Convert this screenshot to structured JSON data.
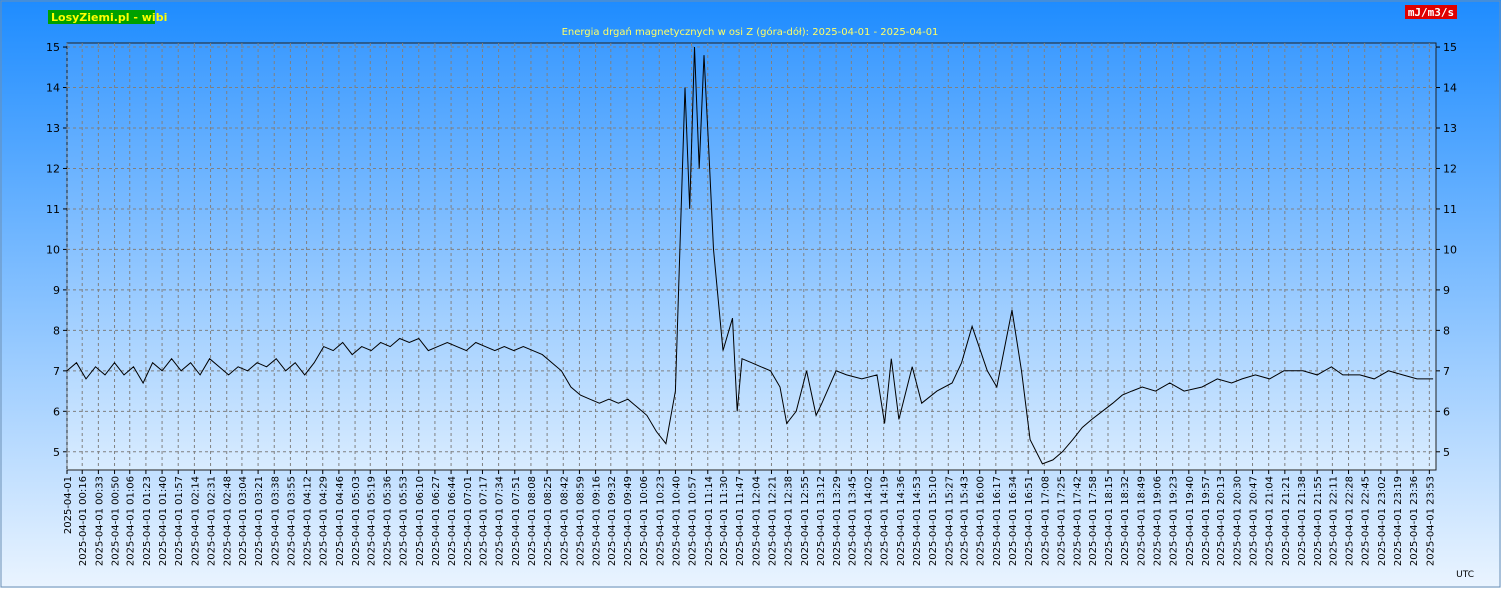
{
  "chart_data": {
    "type": "line",
    "title": "Energia drgań magnetycznych w osi Z (góra-dół): 2025-04-01 - 2025-04-01",
    "badge": "LosyZiemi.pl - wibi",
    "unit": "mJ/m3/s",
    "timezone": "UTC",
    "grid": true,
    "xlim": [
      0,
      1440
    ],
    "ylim": [
      4.55,
      15.1
    ],
    "yticks": [
      5,
      6,
      7,
      8,
      9,
      10,
      11,
      12,
      13,
      14,
      15
    ],
    "xticks": [
      {
        "value": 0,
        "label": "2025-04-01"
      },
      {
        "value": 16,
        "label": "2025-04-01 00:16"
      },
      {
        "value": 33,
        "label": "2025-04-01 00:33"
      },
      {
        "value": 50,
        "label": "2025-04-01 00:50"
      },
      {
        "value": 66,
        "label": "2025-04-01 01:06"
      },
      {
        "value": 83,
        "label": "2025-04-01 01:23"
      },
      {
        "value": 100,
        "label": "2025-04-01 01:40"
      },
      {
        "value": 117,
        "label": "2025-04-01 01:57"
      },
      {
        "value": 134,
        "label": "2025-04-01 02:14"
      },
      {
        "value": 151,
        "label": "2025-04-01 02:31"
      },
      {
        "value": 168,
        "label": "2025-04-01 02:48"
      },
      {
        "value": 184,
        "label": "2025-04-01 03:04"
      },
      {
        "value": 201,
        "label": "2025-04-01 03:21"
      },
      {
        "value": 218,
        "label": "2025-04-01 03:38"
      },
      {
        "value": 235,
        "label": "2025-04-01 03:55"
      },
      {
        "value": 252,
        "label": "2025-04-01 04:12"
      },
      {
        "value": 269,
        "label": "2025-04-01 04:29"
      },
      {
        "value": 286,
        "label": "2025-04-01 04:46"
      },
      {
        "value": 303,
        "label": "2025-04-01 05:03"
      },
      {
        "value": 319,
        "label": "2025-04-01 05:19"
      },
      {
        "value": 336,
        "label": "2025-04-01 05:36"
      },
      {
        "value": 353,
        "label": "2025-04-01 05:53"
      },
      {
        "value": 370,
        "label": "2025-04-01 06:10"
      },
      {
        "value": 387,
        "label": "2025-04-01 06:27"
      },
      {
        "value": 404,
        "label": "2025-04-01 06:44"
      },
      {
        "value": 421,
        "label": "2025-04-01 07:01"
      },
      {
        "value": 437,
        "label": "2025-04-01 07:17"
      },
      {
        "value": 454,
        "label": "2025-04-01 07:34"
      },
      {
        "value": 471,
        "label": "2025-04-01 07:51"
      },
      {
        "value": 488,
        "label": "2025-04-01 08:08"
      },
      {
        "value": 505,
        "label": "2025-04-01 08:25"
      },
      {
        "value": 522,
        "label": "2025-04-01 08:42"
      },
      {
        "value": 539,
        "label": "2025-04-01 08:59"
      },
      {
        "value": 556,
        "label": "2025-04-01 09:16"
      },
      {
        "value": 572,
        "label": "2025-04-01 09:32"
      },
      {
        "value": 589,
        "label": "2025-04-01 09:49"
      },
      {
        "value": 606,
        "label": "2025-04-01 10:06"
      },
      {
        "value": 623,
        "label": "2025-04-01 10:23"
      },
      {
        "value": 640,
        "label": "2025-04-01 10:40"
      },
      {
        "value": 657,
        "label": "2025-04-01 10:57"
      },
      {
        "value": 674,
        "label": "2025-04-01 11:14"
      },
      {
        "value": 690,
        "label": "2025-04-01 11:30"
      },
      {
        "value": 707,
        "label": "2025-04-01 11:47"
      },
      {
        "value": 724,
        "label": "2025-04-01 12:04"
      },
      {
        "value": 741,
        "label": "2025-04-01 12:21"
      },
      {
        "value": 758,
        "label": "2025-04-01 12:38"
      },
      {
        "value": 775,
        "label": "2025-04-01 12:55"
      },
      {
        "value": 792,
        "label": "2025-04-01 13:12"
      },
      {
        "value": 809,
        "label": "2025-04-01 13:29"
      },
      {
        "value": 825,
        "label": "2025-04-01 13:45"
      },
      {
        "value": 842,
        "label": "2025-04-01 14:02"
      },
      {
        "value": 859,
        "label": "2025-04-01 14:19"
      },
      {
        "value": 876,
        "label": "2025-04-01 14:36"
      },
      {
        "value": 893,
        "label": "2025-04-01 14:53"
      },
      {
        "value": 910,
        "label": "2025-04-01 15:10"
      },
      {
        "value": 927,
        "label": "2025-04-01 15:27"
      },
      {
        "value": 943,
        "label": "2025-04-01 15:43"
      },
      {
        "value": 960,
        "label": "2025-04-01 16:00"
      },
      {
        "value": 977,
        "label": "2025-04-01 16:17"
      },
      {
        "value": 994,
        "label": "2025-04-01 16:34"
      },
      {
        "value": 1011,
        "label": "2025-04-01 16:51"
      },
      {
        "value": 1028,
        "label": "2025-04-01 17:08"
      },
      {
        "value": 1045,
        "label": "2025-04-01 17:25"
      },
      {
        "value": 1062,
        "label": "2025-04-01 17:42"
      },
      {
        "value": 1078,
        "label": "2025-04-01 17:58"
      },
      {
        "value": 1095,
        "label": "2025-04-01 18:15"
      },
      {
        "value": 1112,
        "label": "2025-04-01 18:32"
      },
      {
        "value": 1129,
        "label": "2025-04-01 18:49"
      },
      {
        "value": 1146,
        "label": "2025-04-01 19:06"
      },
      {
        "value": 1163,
        "label": "2025-04-01 19:23"
      },
      {
        "value": 1180,
        "label": "2025-04-01 19:40"
      },
      {
        "value": 1197,
        "label": "2025-04-01 19:57"
      },
      {
        "value": 1213,
        "label": "2025-04-01 20:13"
      },
      {
        "value": 1230,
        "label": "2025-04-01 20:30"
      },
      {
        "value": 1247,
        "label": "2025-04-01 20:47"
      },
      {
        "value": 1264,
        "label": "2025-04-01 21:04"
      },
      {
        "value": 1281,
        "label": "2025-04-01 21:21"
      },
      {
        "value": 1298,
        "label": "2025-04-01 21:38"
      },
      {
        "value": 1315,
        "label": "2025-04-01 21:55"
      },
      {
        "value": 1331,
        "label": "2025-04-01 22:11"
      },
      {
        "value": 1348,
        "label": "2025-04-01 22:28"
      },
      {
        "value": 1365,
        "label": "2025-04-01 22:45"
      },
      {
        "value": 1382,
        "label": "2025-04-01 23:02"
      },
      {
        "value": 1399,
        "label": "2025-04-01 23:19"
      },
      {
        "value": 1416,
        "label": "2025-04-01 23:36"
      },
      {
        "value": 1433,
        "label": "2025-04-01 23:53"
      }
    ],
    "x": [
      0,
      10,
      20,
      30,
      40,
      50,
      60,
      70,
      80,
      90,
      100,
      110,
      120,
      130,
      140,
      150,
      160,
      170,
      180,
      190,
      200,
      210,
      220,
      230,
      240,
      250,
      260,
      270,
      280,
      290,
      300,
      310,
      320,
      330,
      340,
      350,
      360,
      370,
      380,
      390,
      400,
      410,
      420,
      430,
      440,
      450,
      460,
      470,
      480,
      490,
      500,
      510,
      520,
      530,
      540,
      550,
      560,
      570,
      580,
      590,
      600,
      610,
      620,
      630,
      640,
      650,
      655,
      660,
      665,
      670,
      675,
      680,
      690,
      700,
      705,
      710,
      720,
      730,
      740,
      750,
      757,
      767,
      778,
      788,
      794,
      809,
      820,
      836,
      852,
      860,
      867,
      875,
      889,
      899,
      915,
      931,
      941,
      952,
      968,
      978,
      994,
      1004,
      1013,
      1026,
      1037,
      1047,
      1058,
      1068,
      1078,
      1089,
      1100,
      1110,
      1120,
      1131,
      1145,
      1160,
      1175,
      1194,
      1210,
      1225,
      1236,
      1250,
      1265,
      1280,
      1300,
      1315,
      1330,
      1342,
      1360,
      1375,
      1390,
      1405,
      1420,
      1437
    ],
    "series": [
      {
        "color": "#000000",
        "values": [
          7.0,
          7.2,
          6.8,
          7.1,
          6.9,
          7.2,
          6.9,
          7.1,
          6.7,
          7.2,
          7.0,
          7.3,
          7.0,
          7.2,
          6.9,
          7.3,
          7.1,
          6.9,
          7.1,
          7.0,
          7.2,
          7.1,
          7.3,
          7.0,
          7.2,
          6.9,
          7.2,
          7.6,
          7.5,
          7.7,
          7.4,
          7.6,
          7.5,
          7.7,
          7.6,
          7.8,
          7.7,
          7.8,
          7.5,
          7.6,
          7.7,
          7.6,
          7.5,
          7.7,
          7.6,
          7.5,
          7.6,
          7.5,
          7.6,
          7.5,
          7.4,
          7.2,
          7.0,
          6.6,
          6.4,
          6.3,
          6.2,
          6.3,
          6.2,
          6.3,
          6.1,
          5.9,
          5.5,
          5.2,
          6.5,
          14.0,
          11.0,
          15.0,
          12.0,
          14.8,
          12.5,
          10.0,
          7.5,
          8.3,
          6.0,
          7.3,
          7.2,
          7.1,
          7.0,
          6.6,
          5.7,
          6.0,
          7.0,
          5.9,
          6.2,
          7.0,
          6.9,
          6.8,
          6.9,
          5.7,
          7.3,
          5.8,
          7.1,
          6.2,
          6.5,
          6.7,
          7.2,
          8.1,
          7.0,
          6.6,
          8.5,
          7.0,
          5.3,
          4.7,
          4.8,
          5.0,
          5.3,
          5.6,
          5.8,
          6.0,
          6.2,
          6.4,
          6.5,
          6.6,
          6.5,
          6.7,
          6.5,
          6.6,
          6.8,
          6.7,
          6.8,
          6.9,
          6.8,
          7.0,
          7.0,
          6.9,
          7.1,
          6.9,
          6.9,
          6.8,
          7.0,
          6.9,
          6.8,
          6.8
        ]
      }
    ]
  }
}
